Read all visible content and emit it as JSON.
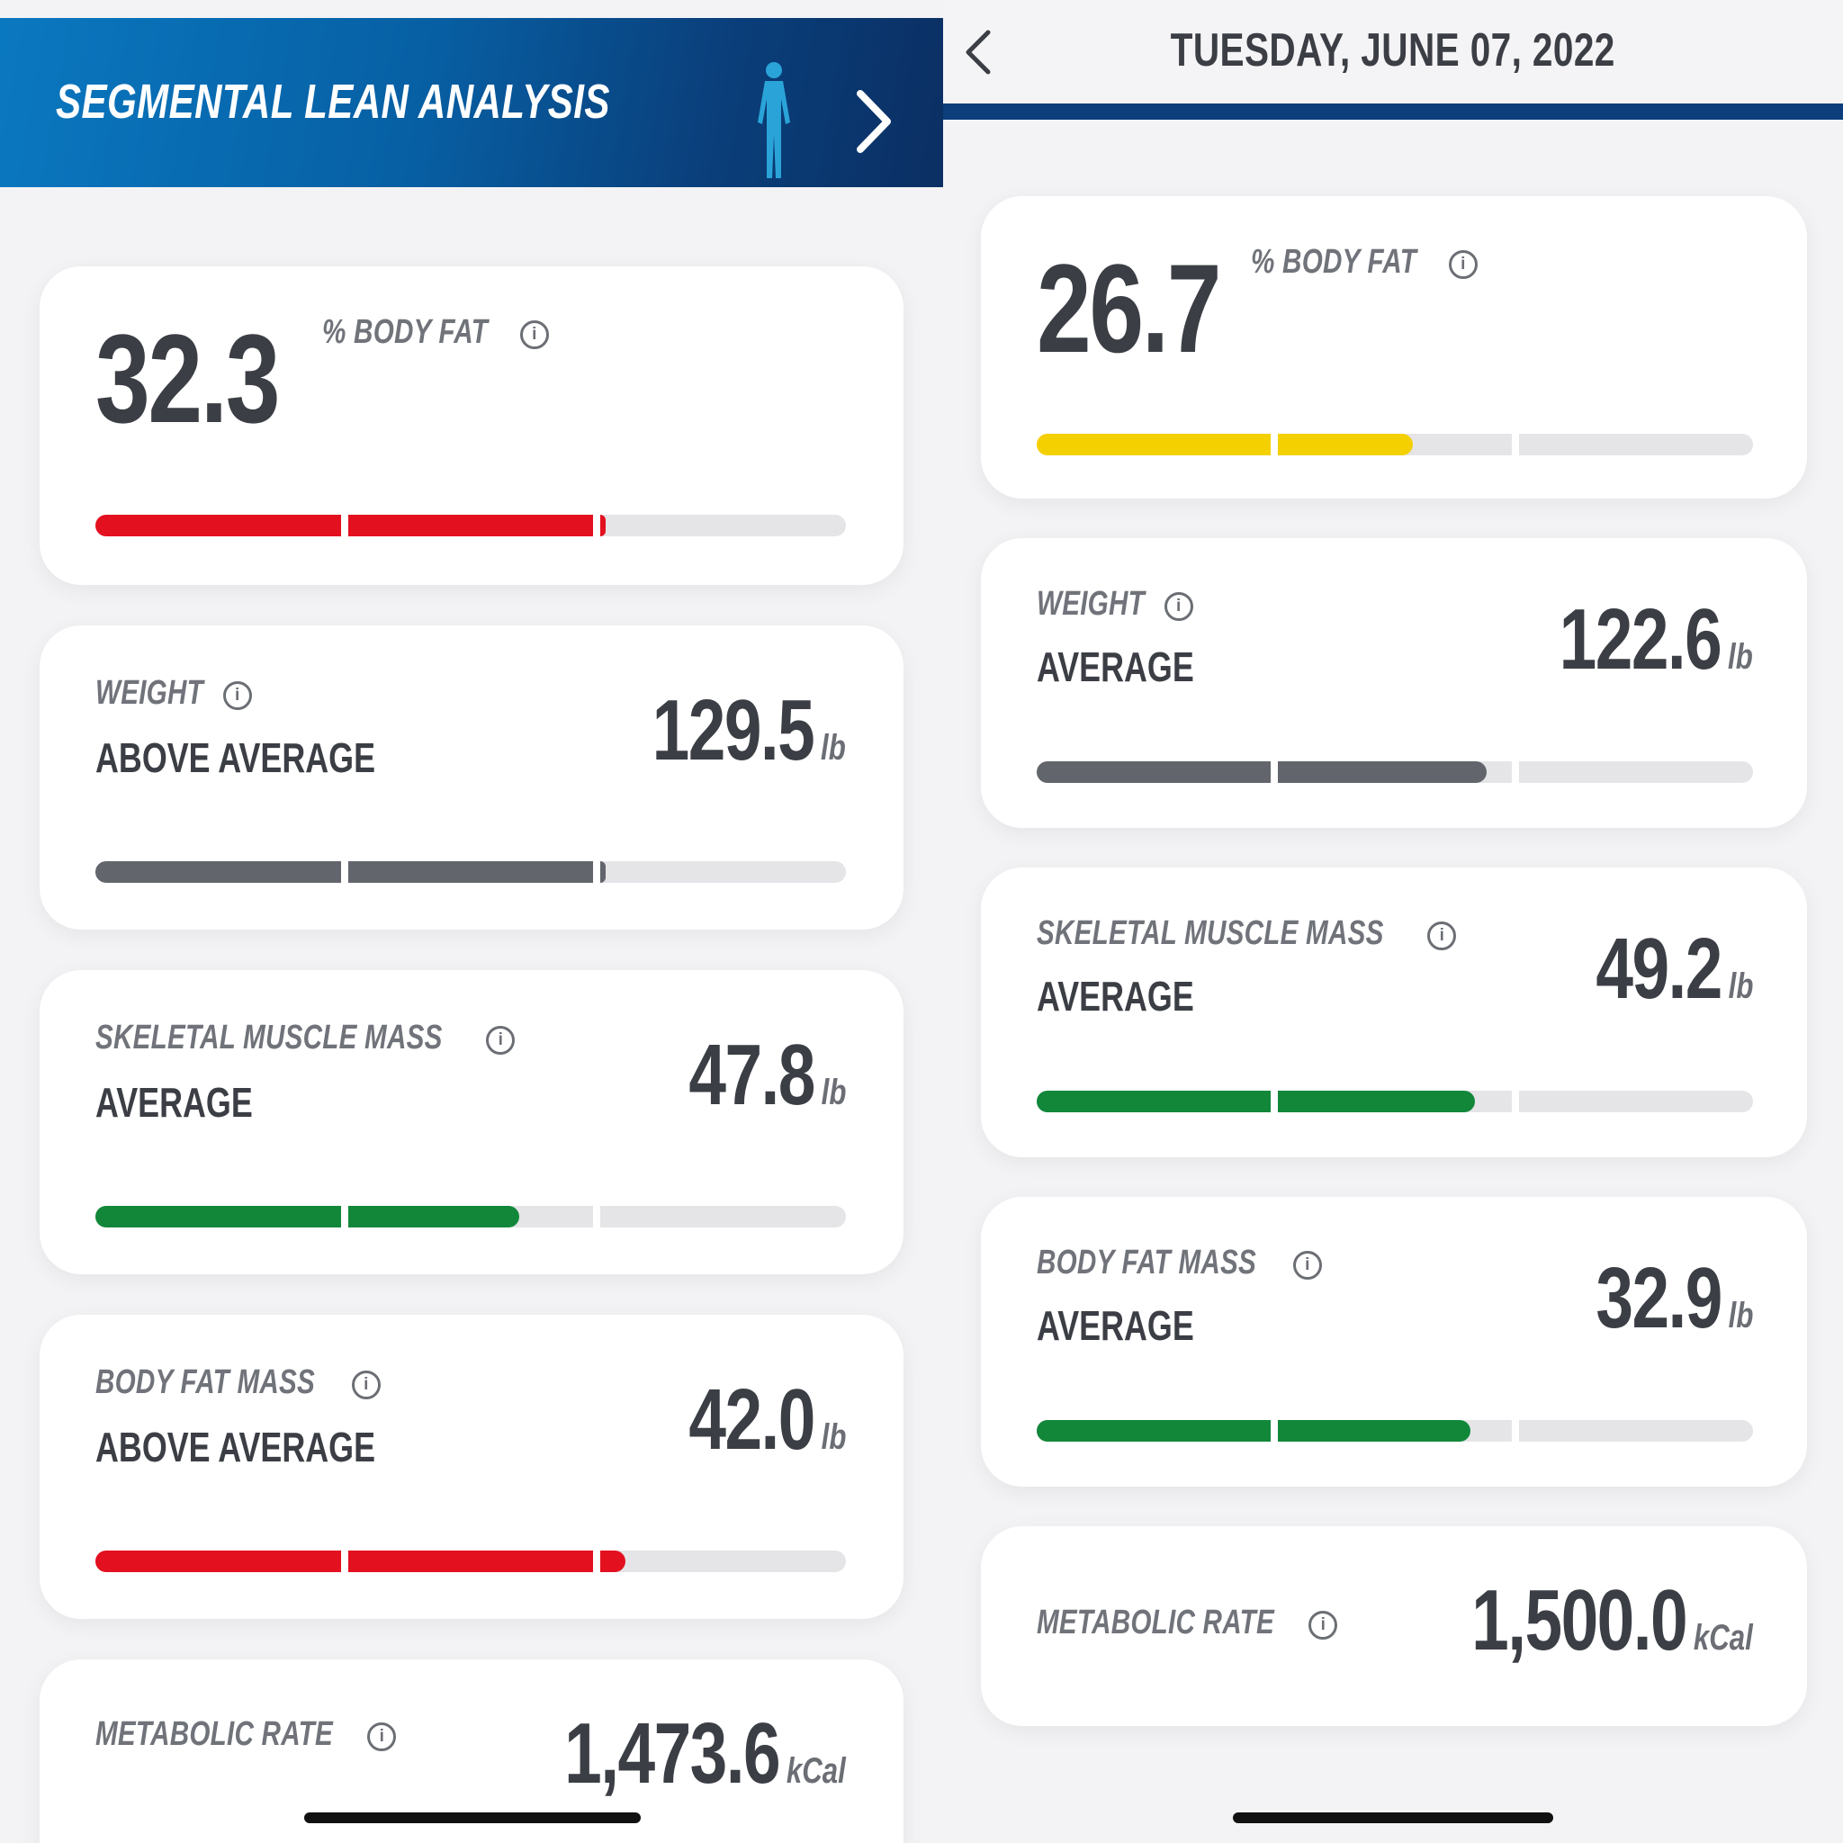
{
  "colors": {
    "red": "#e3101f",
    "yellow": "#f5d000",
    "gray": "#62656b",
    "green": "#12873a",
    "track": "#e5e5e8"
  },
  "left": {
    "banner_title": "SEGMENTAL LEAN ANALYSIS",
    "body_fat": {
      "value": "32.3",
      "label": "% BODY FAT",
      "info": "i",
      "level": 0.68,
      "color": "red"
    },
    "weight": {
      "label": "WEIGHT",
      "info": "i",
      "status": "ABOVE AVERAGE",
      "value": "129.5",
      "unit": "lb",
      "level": 0.68,
      "color": "gray"
    },
    "skeletal_muscle": {
      "label": "SKELETAL MUSCLE MASS",
      "info": "i",
      "status": "AVERAGE",
      "value": "47.8",
      "unit": "lb",
      "level": 0.565,
      "color": "green"
    },
    "body_fat_mass": {
      "label": "BODY FAT MASS",
      "info": "i",
      "status": "ABOVE AVERAGE",
      "value": "42.0",
      "unit": "lb",
      "level": 0.706,
      "color": "red"
    },
    "metabolic_rate": {
      "label": "METABOLIC RATE",
      "info": "i",
      "value": "1,473.6",
      "unit": "kCal"
    }
  },
  "right": {
    "date": "TUESDAY, JUNE 07, 2022",
    "body_fat": {
      "value": "26.7",
      "label": "% BODY FAT",
      "info": "i",
      "level": 0.525,
      "color": "yellow"
    },
    "weight": {
      "label": "WEIGHT",
      "info": "i",
      "status": "AVERAGE",
      "value": "122.6",
      "unit": "lb",
      "level": 0.628,
      "color": "gray"
    },
    "skeletal_muscle": {
      "label": "SKELETAL MUSCLE MASS",
      "info": "i",
      "status": "AVERAGE",
      "value": "49.2",
      "unit": "lb",
      "level": 0.612,
      "color": "green"
    },
    "body_fat_mass": {
      "label": "BODY FAT MASS",
      "info": "i",
      "status": "AVERAGE",
      "value": "32.9",
      "unit": "lb",
      "level": 0.606,
      "color": "green"
    },
    "metabolic_rate": {
      "label": "METABOLIC RATE",
      "info": "i",
      "value": "1,500.0",
      "unit": "kCal"
    }
  }
}
